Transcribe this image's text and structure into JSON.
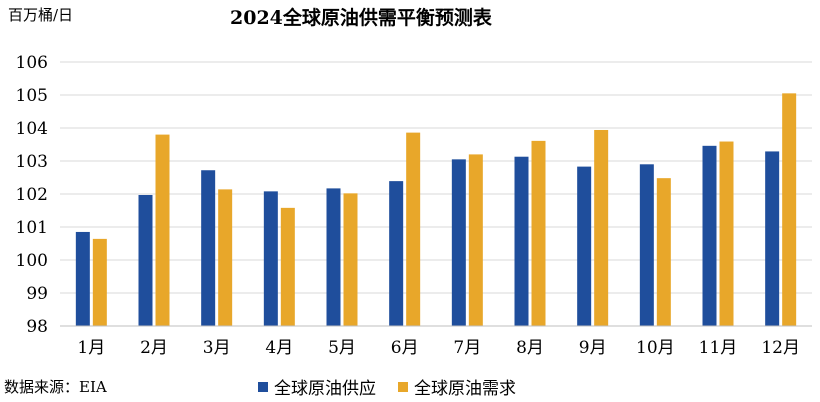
{
  "chart_data": {
    "type": "bar",
    "title": "2024全球原油供需平衡预测表",
    "unit_label": "百万桶/日",
    "source": "数据来源：EIA",
    "categories": [
      "1月",
      "2月",
      "3月",
      "4月",
      "5月",
      "6月",
      "7月",
      "8月",
      "9月",
      "10月",
      "11月",
      "12月"
    ],
    "series": [
      {
        "name": "全球原油供应",
        "color": "#1f4e9c",
        "values": [
          100.85,
          101.97,
          102.72,
          102.08,
          102.17,
          102.39,
          103.05,
          103.13,
          102.83,
          102.9,
          103.46,
          103.29
        ]
      },
      {
        "name": "全球原油需求",
        "color": "#e8a72a",
        "values": [
          100.64,
          103.8,
          102.14,
          101.58,
          102.02,
          103.86,
          103.2,
          103.61,
          103.94,
          102.48,
          103.59,
          105.05
        ]
      }
    ],
    "ylim": [
      98,
      106
    ],
    "yticks": [
      98,
      99,
      100,
      101,
      102,
      103,
      104,
      105,
      106
    ],
    "grid": true,
    "legend_position": "bottom"
  }
}
